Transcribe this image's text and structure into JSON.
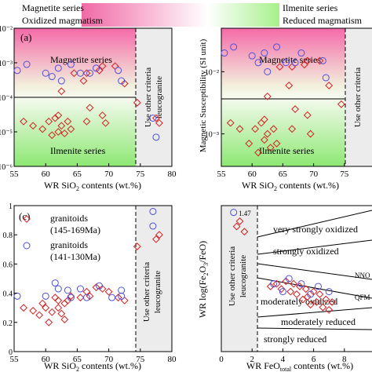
{
  "header": {
    "left_top": "Magnetite series",
    "left_bottom": "Oxidized magmatism",
    "right_top": "Ilmenite series",
    "right_bottom": "Reduced magmatism",
    "colors": {
      "oxidized": "#f06aa6",
      "reduced": "#a8f08c"
    }
  },
  "colors": {
    "granitoid_old": "#d62020",
    "granitoid_young": "#5050d8",
    "threshold": "#000000",
    "other_zone": "#ececec"
  },
  "chart_data": [
    {
      "type": "scatter",
      "panel": "(a)",
      "xlabel": "WR SiO2 contents (wt.%)",
      "ylabel": "",
      "xlim": [
        55,
        80
      ],
      "ylim": [
        1e-06,
        0.01
      ],
      "log_y": true,
      "x_ticks": [
        "55",
        "60",
        "65",
        "70",
        "75",
        "80"
      ],
      "y_ticks": [
        "10⁻⁶",
        "10⁻⁵",
        "10⁻⁴",
        "10⁻³",
        "10⁻²"
      ],
      "threshold_y": 0.0001,
      "zone_labels": {
        "upper": "Magnetite series",
        "lower": "Ilmenite series",
        "other": [
          "Use other criteria",
          "leucogranite"
        ]
      },
      "series": [
        {
          "marker": "diamond",
          "points": [
            [
              56.5,
              2e-05
            ],
            [
              58,
              1.5e-05
            ],
            [
              59.5,
              1.2e-05
            ],
            [
              60.5,
              2e-05
            ],
            [
              61,
              8e-06
            ],
            [
              61.5,
              2.5e-05
            ],
            [
              62,
              3e-05
            ],
            [
              62,
              1e-05
            ],
            [
              62.5,
              1.5e-05
            ],
            [
              63,
              9e-06
            ],
            [
              63.5,
              2e-05
            ],
            [
              64,
              1.2e-05
            ],
            [
              66,
              0.0003
            ],
            [
              66.5,
              2e-05
            ],
            [
              67,
              5e-05
            ],
            [
              68.5,
              0.0006
            ],
            [
              69,
              3e-05
            ],
            [
              69.5,
              1.8e-05
            ],
            [
              62.5,
              0.00015
            ],
            [
              64.5,
              0.0005
            ],
            [
              66.5,
              0.0005
            ],
            [
              69,
              0.0008
            ],
            [
              71,
              0.0008
            ],
            [
              72.5,
              0.00025
            ],
            [
              74.5,
              7e-05
            ],
            [
              77.5,
              2.5e-05
            ],
            [
              78,
              1.8e-05
            ]
          ]
        },
        {
          "marker": "circle",
          "points": [
            [
              55.5,
              0.0006
            ],
            [
              57,
              0.0009
            ],
            [
              60,
              0.0005
            ],
            [
              61,
              0.0004
            ],
            [
              62,
              0.0007
            ],
            [
              62.5,
              0.0003
            ],
            [
              64,
              0.0009
            ],
            [
              65.5,
              0.0005
            ],
            [
              67,
              0.0005
            ],
            [
              68,
              0.0007
            ],
            [
              71.5,
              0.0006
            ],
            [
              72,
              0.0003
            ],
            [
              77,
              2.5e-05
            ],
            [
              77.5,
              7e-06
            ]
          ]
        }
      ]
    },
    {
      "type": "scatter",
      "panel": "",
      "xlabel": "WR SiO2 contents (wt.%)",
      "ylabel": "Magnetic Susceptibility (SI unit)",
      "xlim": [
        55,
        80
      ],
      "ylim": [
        0.0003,
        0.05
      ],
      "log_y": true,
      "x_ticks": [
        "55",
        "60",
        "65",
        "70",
        "75"
      ],
      "y_ticks": [
        "10⁻³",
        "10⁻²"
      ],
      "threshold_y": 0.003,
      "zone_labels": {
        "upper": "Magnetite series",
        "lower": "Ilmenite series",
        "other": [
          "Use other criteria",
          "leucogranite"
        ]
      },
      "series": [
        {
          "marker": "diamond",
          "points": [
            [
              56.5,
              0.0015
            ],
            [
              58,
              0.0012
            ],
            [
              59.5,
              0.0007
            ],
            [
              60.5,
              0.0012
            ],
            [
              61,
              0.0005
            ],
            [
              61.5,
              0.0015
            ],
            [
              62,
              0.0017
            ],
            [
              62,
              0.0008
            ],
            [
              62.5,
              0.001
            ],
            [
              63,
              0.0006
            ],
            [
              63.5,
              0.0012
            ],
            [
              64,
              0.0007
            ],
            [
              66,
              0.006
            ],
            [
              66.5,
              0.0012
            ],
            [
              67,
              0.0025
            ],
            [
              68.5,
              0.013
            ],
            [
              69,
              0.002
            ],
            [
              69.5,
              0.001
            ],
            [
              62.5,
              0.004
            ],
            [
              64.5,
              0.012
            ],
            [
              66.5,
              0.012
            ],
            [
              69,
              0.015
            ],
            [
              71,
              0.015
            ],
            [
              72.5,
              0.006
            ],
            [
              74.5,
              0.003
            ]
          ]
        },
        {
          "marker": "circle",
          "points": [
            [
              55.5,
              0.02
            ],
            [
              57,
              0.025
            ],
            [
              60,
              0.018
            ],
            [
              61,
              0.014
            ],
            [
              62,
              0.02
            ],
            [
              62.5,
              0.01
            ],
            [
              64,
              0.025
            ],
            [
              65.5,
              0.014
            ],
            [
              67,
              0.014
            ],
            [
              68,
              0.02
            ],
            [
              71.5,
              0.015
            ],
            [
              72,
              0.008
            ]
          ]
        }
      ]
    },
    {
      "type": "scatter",
      "panel": "(c)",
      "xlabel": "WR SiO2 contents (wt.%)",
      "ylabel": "",
      "xlim": [
        55,
        80
      ],
      "ylim": [
        0,
        1
      ],
      "log_y": false,
      "x_ticks": [
        "55",
        "60",
        "65",
        "70",
        "75",
        "80"
      ],
      "y_ticks": [
        "0",
        "0.2",
        "0.4",
        "0.6",
        "0.8",
        "1"
      ],
      "zone_labels": {
        "other": [
          "Use other criteria",
          "leucogranite"
        ]
      },
      "legend": {
        "position": "top-left",
        "entries": [
          {
            "marker": "diamond",
            "label": [
              "granitoids",
              "(145-169Ma)"
            ]
          },
          {
            "marker": "circle",
            "label": [
              "granitoids",
              "(141-130Ma)"
            ]
          }
        ]
      },
      "series": [
        {
          "marker": "diamond",
          "points": [
            [
              56.5,
              0.3
            ],
            [
              58,
              0.28
            ],
            [
              59,
              0.25
            ],
            [
              59.5,
              0.33
            ],
            [
              60,
              0.3
            ],
            [
              60.5,
              0.2
            ],
            [
              61,
              0.27
            ],
            [
              61.5,
              0.37
            ],
            [
              62,
              0.35
            ],
            [
              62,
              0.3
            ],
            [
              62.5,
              0.26
            ],
            [
              63,
              0.33
            ],
            [
              63,
              0.22
            ],
            [
              63.5,
              0.35
            ],
            [
              64,
              0.38
            ],
            [
              65.5,
              0.37
            ],
            [
              66.5,
              0.41
            ],
            [
              67,
              0.38
            ],
            [
              68,
              0.44
            ],
            [
              69,
              0.43
            ],
            [
              70,
              0.41
            ],
            [
              71.5,
              0.37
            ],
            [
              72.5,
              0.35
            ],
            [
              74.5,
              0.72
            ],
            [
              77.5,
              0.77
            ],
            [
              78,
              0.8
            ]
          ]
        },
        {
          "marker": "circle",
          "points": [
            [
              55.5,
              0.38
            ],
            [
              60,
              0.38
            ],
            [
              61.5,
              0.47
            ],
            [
              62,
              0.43
            ],
            [
              63.5,
              0.42
            ],
            [
              64,
              0.37
            ],
            [
              65.5,
              0.43
            ],
            [
              66.5,
              0.37
            ],
            [
              68.5,
              0.45
            ],
            [
              70.5,
              0.37
            ],
            [
              72,
              0.42
            ],
            [
              72,
              0.38
            ],
            [
              77,
              0.96
            ],
            [
              77,
              0.86
            ]
          ]
        }
      ]
    },
    {
      "type": "scatter",
      "panel": "",
      "xlabel": "WR FeOtotal contents (wt.%)",
      "ylabel": "WR log(Fe2O3/FeO)",
      "xlim": [
        0,
        10
      ],
      "ylim": [
        -1.2,
        1.6
      ],
      "log_y": false,
      "x_ticks": [
        "0",
        "2",
        "4",
        "6",
        "8"
      ],
      "y_ticks": [],
      "zone_labels": {
        "other": [
          "Use other criteria",
          "leucogranite"
        ]
      },
      "annotation": "1.47",
      "regions": [
        "very strongly oxidized",
        "strongly oxidized",
        "moderately oxidized",
        "moderately reduced",
        "strongly reduced"
      ],
      "buffer_labels": [
        "NNO",
        "QFM"
      ],
      "series": [
        {
          "marker": "diamond",
          "points": [
            [
              1.0,
              1.2
            ],
            [
              1.2,
              1.3
            ],
            [
              1.5,
              1.1
            ],
            [
              3.2,
              0.05
            ],
            [
              3.6,
              0.1
            ],
            [
              3.9,
              0.0
            ],
            [
              4.2,
              0.15
            ],
            [
              4.5,
              -0.05
            ],
            [
              4.7,
              0.1
            ],
            [
              4.9,
              -0.1
            ],
            [
              5.1,
              0.05
            ],
            [
              5.3,
              -0.2
            ],
            [
              5.5,
              0.0
            ],
            [
              5.6,
              -0.15
            ],
            [
              5.8,
              -0.3
            ],
            [
              6.0,
              -0.05
            ],
            [
              6.2,
              -0.25
            ],
            [
              6.4,
              -0.1
            ],
            [
              6.6,
              -0.35
            ],
            [
              6.8,
              -0.2
            ],
            [
              7.0,
              -0.4
            ],
            [
              7.2,
              -0.25
            ]
          ]
        },
        {
          "marker": "circle",
          "points": [
            [
              0.8,
              1.47
            ],
            [
              3.4,
              0.1
            ],
            [
              4.0,
              -0.05
            ],
            [
              4.4,
              0.2
            ],
            [
              5.2,
              0.1
            ],
            [
              5.8,
              -0.1
            ],
            [
              6.3,
              0.05
            ],
            [
              7.0,
              -0.05
            ]
          ]
        }
      ]
    }
  ]
}
